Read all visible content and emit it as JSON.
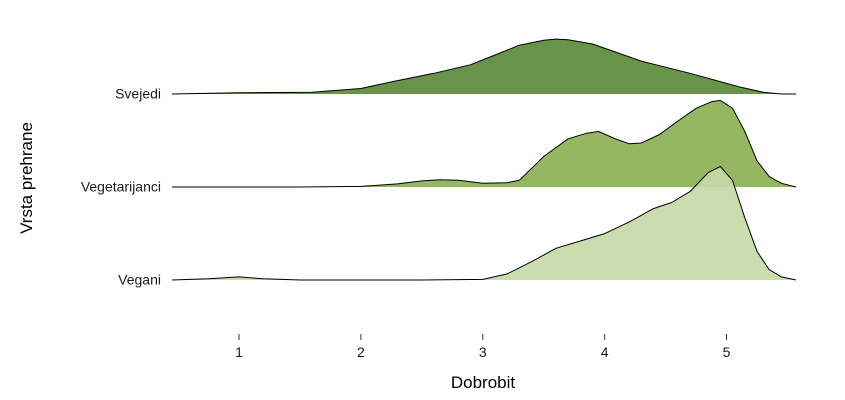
{
  "chart_data": {
    "type": "ridgeline",
    "xlabel": "Dobrobit",
    "ylabel": "Vrsta prehrane",
    "xlim": [
      0.45,
      5.57
    ],
    "x_ticks": [
      1,
      2,
      3,
      4,
      5
    ],
    "x_tick_labels": [
      "1",
      "2",
      "3",
      "4",
      "5"
    ],
    "grid": false,
    "legend": "none",
    "series": [
      {
        "name": "Svejedi",
        "color": "#5b8c3a",
        "fill_opacity": 0.93,
        "density": [
          [
            0.45,
            0.0
          ],
          [
            1.0,
            0.02
          ],
          [
            1.6,
            0.03
          ],
          [
            2.0,
            0.09
          ],
          [
            2.3,
            0.22
          ],
          [
            2.6,
            0.34
          ],
          [
            2.9,
            0.48
          ],
          [
            3.1,
            0.64
          ],
          [
            3.3,
            0.8
          ],
          [
            3.5,
            0.88
          ],
          [
            3.6,
            0.9
          ],
          [
            3.7,
            0.89
          ],
          [
            3.9,
            0.82
          ],
          [
            4.1,
            0.68
          ],
          [
            4.3,
            0.54
          ],
          [
            4.5,
            0.44
          ],
          [
            4.7,
            0.34
          ],
          [
            4.9,
            0.23
          ],
          [
            5.1,
            0.12
          ],
          [
            5.3,
            0.03
          ],
          [
            5.45,
            0.0
          ],
          [
            5.57,
            0.0
          ]
        ]
      },
      {
        "name": "Vegetarijanci",
        "color": "#8db255",
        "fill_opacity": 0.93,
        "density": [
          [
            0.45,
            0.0
          ],
          [
            1.5,
            0.0
          ],
          [
            2.0,
            0.01
          ],
          [
            2.3,
            0.05
          ],
          [
            2.5,
            0.1
          ],
          [
            2.65,
            0.12
          ],
          [
            2.8,
            0.11
          ],
          [
            3.0,
            0.06
          ],
          [
            3.2,
            0.07
          ],
          [
            3.3,
            0.11
          ],
          [
            3.5,
            0.5
          ],
          [
            3.7,
            0.79
          ],
          [
            3.85,
            0.88
          ],
          [
            3.95,
            0.91
          ],
          [
            4.1,
            0.78
          ],
          [
            4.2,
            0.71
          ],
          [
            4.3,
            0.72
          ],
          [
            4.45,
            0.86
          ],
          [
            4.6,
            1.08
          ],
          [
            4.75,
            1.29
          ],
          [
            4.88,
            1.4
          ],
          [
            4.95,
            1.42
          ],
          [
            5.05,
            1.29
          ],
          [
            5.15,
            0.91
          ],
          [
            5.25,
            0.43
          ],
          [
            5.35,
            0.17
          ],
          [
            5.45,
            0.06
          ],
          [
            5.57,
            0.0
          ]
        ]
      },
      {
        "name": "Vegani",
        "color": "#c5d8a8",
        "fill_opacity": 0.9,
        "density": [
          [
            0.45,
            0.0
          ],
          [
            0.75,
            0.02
          ],
          [
            1.0,
            0.05
          ],
          [
            1.2,
            0.02
          ],
          [
            1.5,
            0.0
          ],
          [
            2.5,
            0.0
          ],
          [
            3.0,
            0.01
          ],
          [
            3.2,
            0.1
          ],
          [
            3.4,
            0.3
          ],
          [
            3.6,
            0.52
          ],
          [
            3.8,
            0.64
          ],
          [
            4.0,
            0.76
          ],
          [
            4.2,
            0.95
          ],
          [
            4.4,
            1.17
          ],
          [
            4.55,
            1.27
          ],
          [
            4.7,
            1.45
          ],
          [
            4.85,
            1.76
          ],
          [
            4.95,
            1.86
          ],
          [
            5.05,
            1.63
          ],
          [
            5.15,
            1.02
          ],
          [
            5.25,
            0.47
          ],
          [
            5.35,
            0.17
          ],
          [
            5.45,
            0.05
          ],
          [
            5.57,
            0.0
          ]
        ]
      }
    ]
  }
}
